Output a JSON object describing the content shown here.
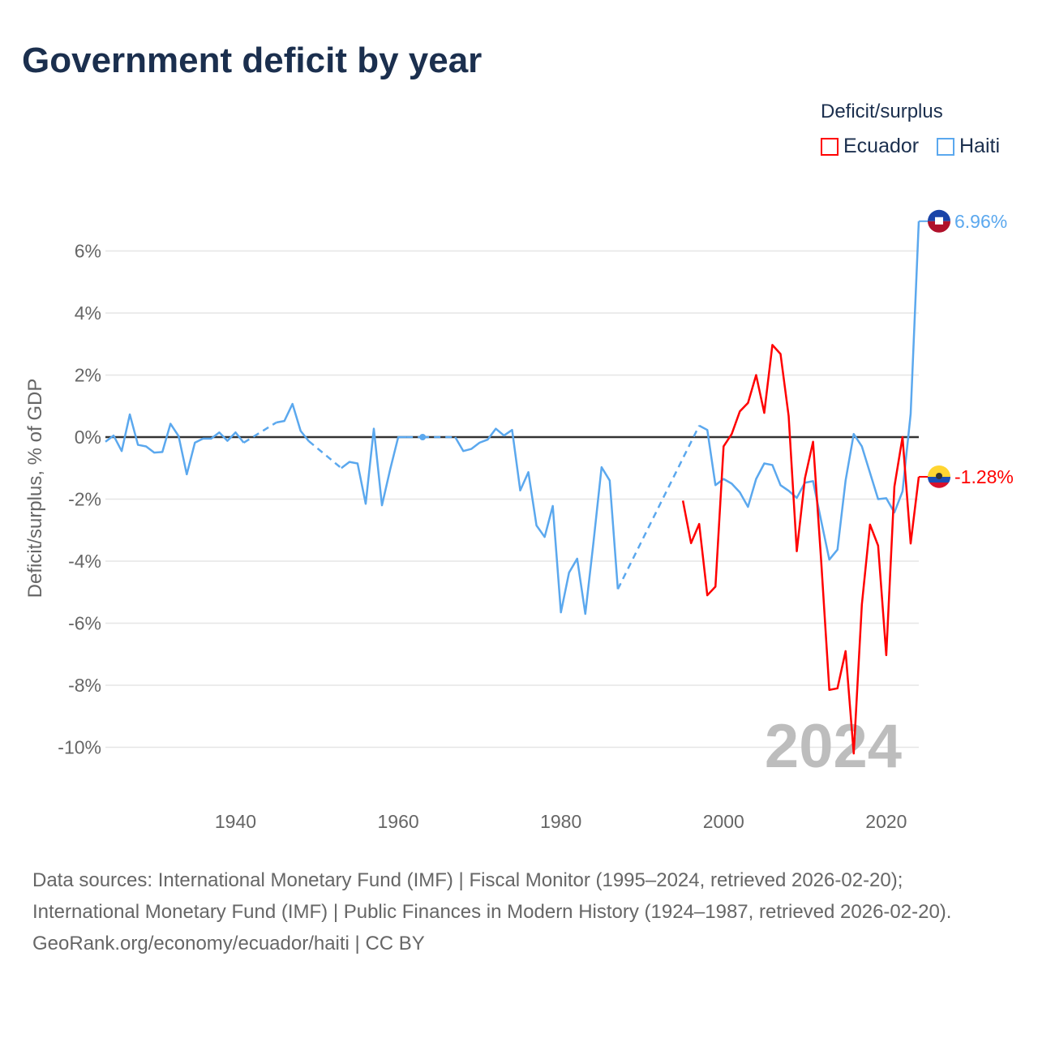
{
  "title": "Government deficit by year",
  "legend": {
    "title": "Deficit/surplus",
    "items": [
      {
        "name": "Ecuador",
        "color": "#ff0000"
      },
      {
        "name": "Haiti",
        "color": "#5ba8ee"
      }
    ]
  },
  "footer": {
    "sources": "Data sources: International Monetary Fund (IMF) | Fiscal Monitor (1995–2024, retrieved 2026-02-20); International Monetary Fund (IMF) | Public Finances in Modern History (1924–1987, retrieved 2026-02-20).",
    "credit": "GeoRank.org/economy/ecuador/haiti | CC BY"
  },
  "chart_data": {
    "type": "line",
    "title": "Government deficit by year",
    "xlabel": "",
    "ylabel": "Deficit/surplus, % of GDP",
    "xlim": [
      1924,
      2024
    ],
    "ylim": [
      -11.5,
      7.5
    ],
    "xticks": [
      1940,
      1960,
      1980,
      2000,
      2020
    ],
    "yticks": [
      6,
      4,
      2,
      0,
      -2,
      -4,
      -6,
      -8,
      -10
    ],
    "ytick_labels": [
      "6%",
      "4%",
      "2%",
      "0%",
      "-2%",
      "-4%",
      "-6%",
      "-8%",
      "-10%"
    ],
    "grid": true,
    "legend_position": "top-right",
    "year_label": "2024",
    "series": [
      {
        "name": "Haiti",
        "color": "#5ba8ee",
        "end_label": "6.96%",
        "points": [
          [
            1924,
            -0.15
          ],
          [
            1925,
            0.05
          ],
          [
            1926,
            -0.45
          ],
          [
            1927,
            0.73
          ],
          [
            1928,
            -0.25
          ],
          [
            1929,
            -0.3
          ],
          [
            1930,
            -0.5
          ],
          [
            1931,
            -0.48
          ],
          [
            1932,
            0.43
          ],
          [
            1933,
            0.03
          ],
          [
            1934,
            -1.2
          ],
          [
            1935,
            -0.18
          ],
          [
            1936,
            -0.05
          ],
          [
            1937,
            -0.05
          ],
          [
            1938,
            0.15
          ],
          [
            1939,
            -0.12
          ],
          [
            1940,
            0.15
          ],
          [
            1941,
            -0.18
          ],
          [
            1945,
            0.47
          ],
          [
            1946,
            0.52
          ],
          [
            1947,
            1.07
          ],
          [
            1948,
            0.2
          ],
          [
            1949,
            -0.13
          ],
          [
            1953,
            -1.0
          ],
          [
            1954,
            -0.8
          ],
          [
            1955,
            -0.85
          ],
          [
            1956,
            -2.15
          ],
          [
            1957,
            0.27
          ],
          [
            1958,
            -2.2
          ],
          [
            1959,
            -1.05
          ],
          [
            1960,
            0.0
          ],
          [
            1961,
            0.0
          ],
          [
            1963,
            0.0
          ],
          [
            1967,
            0.0
          ],
          [
            1968,
            -0.45
          ],
          [
            1969,
            -0.38
          ],
          [
            1970,
            -0.18
          ],
          [
            1971,
            -0.08
          ],
          [
            1972,
            0.27
          ],
          [
            1973,
            0.05
          ],
          [
            1974,
            0.23
          ],
          [
            1975,
            -1.72
          ],
          [
            1976,
            -1.13
          ],
          [
            1977,
            -2.85
          ],
          [
            1978,
            -3.22
          ],
          [
            1979,
            -2.22
          ],
          [
            1980,
            -5.65
          ],
          [
            1981,
            -4.37
          ],
          [
            1982,
            -3.92
          ],
          [
            1983,
            -5.7
          ],
          [
            1984,
            -3.4
          ],
          [
            1985,
            -0.97
          ],
          [
            1986,
            -1.4
          ],
          [
            1987,
            -4.9
          ],
          [
            1997,
            0.37
          ],
          [
            1998,
            0.23
          ],
          [
            1999,
            -1.55
          ],
          [
            2000,
            -1.35
          ],
          [
            2001,
            -1.5
          ],
          [
            2002,
            -1.78
          ],
          [
            2003,
            -2.25
          ],
          [
            2004,
            -1.35
          ],
          [
            2005,
            -0.85
          ],
          [
            2006,
            -0.9
          ],
          [
            2007,
            -1.55
          ],
          [
            2008,
            -1.73
          ],
          [
            2009,
            -1.96
          ],
          [
            2010,
            -1.47
          ],
          [
            2011,
            -1.42
          ],
          [
            2012,
            -2.7
          ],
          [
            2013,
            -3.95
          ],
          [
            2014,
            -3.63
          ],
          [
            2015,
            -1.4
          ],
          [
            2016,
            0.1
          ],
          [
            2017,
            -0.3
          ],
          [
            2018,
            -1.15
          ],
          [
            2019,
            -2.0
          ],
          [
            2020,
            -1.97
          ],
          [
            2021,
            -2.43
          ],
          [
            2022,
            -1.75
          ],
          [
            2023,
            0.75
          ],
          [
            2024,
            6.96
          ]
        ]
      },
      {
        "name": "Ecuador",
        "color": "#ff0000",
        "end_label": "-1.28%",
        "points": [
          [
            1995,
            -2.05
          ],
          [
            1996,
            -3.42
          ],
          [
            1997,
            -2.8
          ],
          [
            1998,
            -5.1
          ],
          [
            1999,
            -4.82
          ],
          [
            2000,
            -0.3
          ],
          [
            2001,
            0.1
          ],
          [
            2002,
            0.83
          ],
          [
            2003,
            1.1
          ],
          [
            2004,
            2.0
          ],
          [
            2005,
            0.78
          ],
          [
            2006,
            2.97
          ],
          [
            2007,
            2.68
          ],
          [
            2008,
            0.68
          ],
          [
            2009,
            -3.68
          ],
          [
            2010,
            -1.33
          ],
          [
            2011,
            -0.15
          ],
          [
            2012,
            -4.0
          ],
          [
            2013,
            -8.15
          ],
          [
            2014,
            -8.1
          ],
          [
            2015,
            -6.9
          ],
          [
            2016,
            -10.2
          ],
          [
            2017,
            -5.4
          ],
          [
            2018,
            -2.82
          ],
          [
            2019,
            -3.5
          ],
          [
            2020,
            -7.03
          ],
          [
            2021,
            -1.6
          ],
          [
            2022,
            0.0
          ],
          [
            2023,
            -3.43
          ],
          [
            2024,
            -1.28
          ]
        ]
      }
    ]
  }
}
